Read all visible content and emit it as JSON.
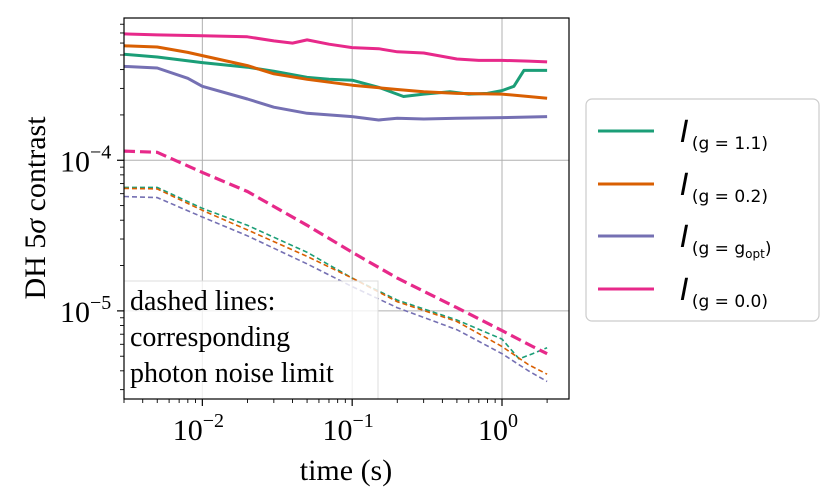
{
  "chart_data": {
    "type": "line",
    "xscale": "log",
    "yscale": "log",
    "xlim": [
      0.003,
      2.8
    ],
    "ylim": [
      2.6e-06,
      0.00088
    ],
    "xlabel": "time (s)",
    "ylabel_prefix": "DH 5",
    "ylabel_sigma": "σ",
    "ylabel_suffix": " contrast",
    "grid": true,
    "x_ticks": [
      {
        "value": 0.01,
        "base": "10",
        "exp": "−2"
      },
      {
        "value": 0.1,
        "base": "10",
        "exp": "−1"
      },
      {
        "value": 1,
        "base": "10",
        "exp": "0"
      }
    ],
    "y_ticks": [
      {
        "value": 1e-05,
        "base": "10",
        "exp": "−5"
      },
      {
        "value": 0.0001,
        "base": "10",
        "exp": "−4"
      }
    ],
    "annotation_lines": [
      "dashed lines:",
      "corresponding",
      "photon noise limit"
    ],
    "legend_position": "outside-right",
    "series": [
      {
        "name": "g = 1.1",
        "legend_main": "I",
        "legend_sub": "(g = 1.1)",
        "color": "#1b9e77",
        "x": [
          0.003,
          0.005,
          0.01,
          0.02,
          0.03,
          0.05,
          0.07,
          0.1,
          0.15,
          0.22,
          0.3,
          0.45,
          0.6,
          0.8,
          1.0,
          1.2,
          1.4,
          2.0
        ],
        "y": [
          0.000505,
          0.000485,
          0.000445,
          0.000415,
          0.00039,
          0.000355,
          0.000345,
          0.00034,
          0.000305,
          0.000265,
          0.000275,
          0.000285,
          0.000275,
          0.000278,
          0.00029,
          0.00031,
          0.000395,
          0.000395
        ]
      },
      {
        "name": "g = 0.2",
        "legend_main": "I",
        "legend_sub": "(g = 0.2)",
        "color": "#d95f02",
        "x": [
          0.003,
          0.005,
          0.008,
          0.01,
          0.02,
          0.03,
          0.05,
          0.1,
          0.2,
          0.3,
          0.5,
          1.0,
          1.5,
          2.0
        ],
        "y": [
          0.000575,
          0.000565,
          0.00052,
          0.000495,
          0.000425,
          0.000375,
          0.000345,
          0.000315,
          0.000295,
          0.000285,
          0.000278,
          0.000275,
          0.000265,
          0.000258
        ]
      },
      {
        "name": "g = g_opt",
        "legend_main": "I",
        "legend_sub": "(g = g",
        "legend_subsub": "opt",
        "legend_sub_end": ")",
        "color": "#7570b3",
        "x": [
          0.003,
          0.005,
          0.008,
          0.01,
          0.02,
          0.03,
          0.05,
          0.1,
          0.15,
          0.2,
          0.3,
          0.5,
          1.0,
          2.0
        ],
        "y": [
          0.00042,
          0.00041,
          0.00035,
          0.00031,
          0.000255,
          0.000225,
          0.000205,
          0.000195,
          0.000185,
          0.00019,
          0.000188,
          0.00019,
          0.000192,
          0.000195
        ]
      },
      {
        "name": "g = 0.0",
        "legend_main": "I",
        "legend_sub": "(g = 0.0)",
        "color": "#e7298a",
        "x": [
          0.003,
          0.005,
          0.01,
          0.02,
          0.03,
          0.04,
          0.05,
          0.07,
          0.1,
          0.15,
          0.2,
          0.3,
          0.5,
          0.7,
          1.0,
          1.5,
          2.0
        ],
        "y": [
          0.00069,
          0.00068,
          0.00067,
          0.00066,
          0.00062,
          0.0006,
          0.00063,
          0.00059,
          0.00056,
          0.00055,
          0.000525,
          0.000515,
          0.00047,
          0.00046,
          0.00046,
          0.000455,
          0.00045
        ]
      }
    ],
    "dashed_series": [
      {
        "name": "photon noise limit g = 1.1",
        "color": "#1b9e77",
        "width": 1.6,
        "x": [
          0.003,
          0.005,
          0.01,
          0.02,
          0.05,
          0.1,
          0.2,
          0.5,
          1.0,
          1.3,
          1.6,
          2.0
        ],
        "y": [
          6.6e-05,
          6.6e-05,
          4.8e-05,
          3.7e-05,
          2.45e-05,
          1.65e-05,
          1.18e-05,
          8.7e-06,
          6.5e-06,
          4.8e-06,
          5.2e-06,
          5.7e-06
        ]
      },
      {
        "name": "photon noise limit g = 0.2",
        "color": "#d95f02",
        "width": 1.6,
        "x": [
          0.003,
          0.005,
          0.01,
          0.02,
          0.05,
          0.1,
          0.2,
          0.5,
          1.0,
          1.5,
          2.0
        ],
        "y": [
          6.5e-05,
          6.45e-05,
          4.65e-05,
          3.45e-05,
          2.3e-05,
          1.65e-05,
          1.15e-05,
          8.5e-06,
          5.8e-06,
          4.4e-06,
          3.8e-06
        ]
      },
      {
        "name": "photon noise limit g = g_opt",
        "color": "#7570b3",
        "width": 1.6,
        "x": [
          0.003,
          0.005,
          0.01,
          0.02,
          0.05,
          0.1,
          0.2,
          0.5,
          1.0,
          1.5,
          2.0
        ],
        "y": [
          5.75e-05,
          5.65e-05,
          4.2e-05,
          3.15e-05,
          2.05e-05,
          1.45e-05,
          1.05e-05,
          7.5e-06,
          5.2e-06,
          4e-06,
          3.4e-06
        ]
      },
      {
        "name": "photon noise limit g = 0.0",
        "color": "#e7298a",
        "width": 3.2,
        "x": [
          0.003,
          0.005,
          0.01,
          0.02,
          0.05,
          0.1,
          0.2,
          0.3,
          0.5,
          1.0,
          1.6,
          2.0
        ],
        "y": [
          0.000115,
          0.000113,
          8.3e-05,
          6.2e-05,
          3.7e-05,
          2.45e-05,
          1.65e-05,
          1.35e-05,
          1.05e-05,
          7.4e-06,
          5.8e-06,
          5.2e-06
        ]
      }
    ]
  }
}
